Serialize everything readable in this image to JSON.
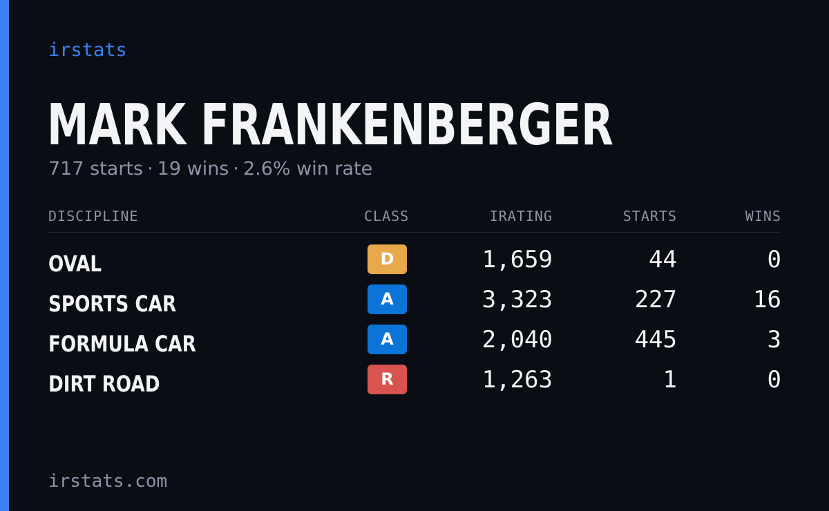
{
  "brand": "irstats",
  "driver": {
    "name": "MARK FRANKENBERGER"
  },
  "summary": {
    "starts": "717 starts",
    "wins": "19 wins",
    "win_rate": "2.6% win rate",
    "separator": "·"
  },
  "table": {
    "headers": {
      "discipline": "DISCIPLINE",
      "class": "CLASS",
      "irating": "IRATING",
      "starts": "STARTS",
      "wins": "WINS"
    },
    "rows": [
      {
        "discipline": "OVAL",
        "class": "D",
        "class_color": "#e8a84c",
        "irating": "1,659",
        "starts": "44",
        "wins": "0"
      },
      {
        "discipline": "SPORTS CAR",
        "class": "A",
        "class_color": "#0c74d6",
        "irating": "3,323",
        "starts": "227",
        "wins": "16"
      },
      {
        "discipline": "FORMULA CAR",
        "class": "A",
        "class_color": "#0c74d6",
        "irating": "2,040",
        "starts": "445",
        "wins": "3"
      },
      {
        "discipline": "DIRT ROAD",
        "class": "R",
        "class_color": "#d9534f",
        "irating": "1,263",
        "starts": "1",
        "wins": "0"
      }
    ]
  },
  "footer": {
    "url": "irstats.com"
  },
  "colors": {
    "background": "#0a0d14",
    "accent": "#3b82f6",
    "text_primary": "#f3f4f6",
    "text_muted": "#8b94a7"
  }
}
